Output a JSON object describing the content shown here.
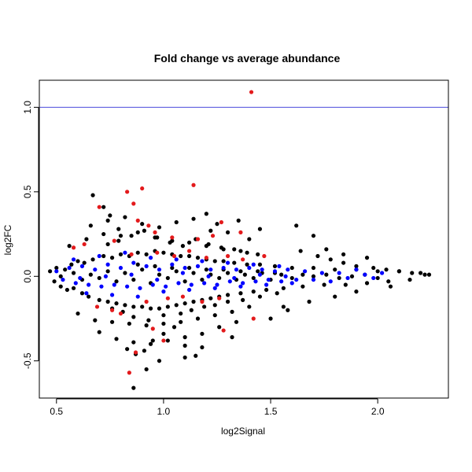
{
  "chart_data": {
    "type": "scatter",
    "title": "Fold change vs average abundance",
    "xlabel": "log2Signal",
    "ylabel": "log2FC",
    "xlim": [
      0.42,
      2.33
    ],
    "ylim": [
      -0.72,
      1.16
    ],
    "x_ticks": [
      {
        "value": 0.5,
        "label": "0.5"
      },
      {
        "value": 1.0,
        "label": "1.0"
      },
      {
        "value": 1.5,
        "label": "1.5"
      },
      {
        "value": 2.0,
        "label": "2.0"
      }
    ],
    "y_ticks": [
      {
        "value": -0.5,
        "label": "-0.5"
      },
      {
        "value": 0.0,
        "label": "0.0"
      },
      {
        "value": 0.5,
        "label": "0.5"
      },
      {
        "value": 1.0,
        "label": "1.0"
      }
    ],
    "reference_line": {
      "axis": "y",
      "value": 1.0,
      "color": "#4c4cdc"
    },
    "grid": false,
    "legend": "none",
    "colors": {
      "all": "#000000",
      "highlight": "#0000ff",
      "significant": "#e31a1c"
    },
    "series": [
      {
        "color": "#000000",
        "x": [
          0.47,
          0.49,
          0.5,
          0.52,
          0.54,
          0.55,
          0.57,
          0.58,
          0.6,
          0.62,
          0.63,
          0.65,
          0.67,
          0.7,
          0.72,
          0.74,
          0.76,
          0.78,
          0.8,
          0.82,
          0.84,
          0.86,
          0.88,
          0.9,
          0.92,
          0.94,
          0.96,
          0.98,
          1.0,
          1.02,
          1.04,
          1.06,
          1.08,
          1.1,
          1.12,
          1.14,
          1.16,
          1.18,
          1.2,
          1.22,
          1.24,
          1.26,
          1.28,
          1.3,
          1.33,
          1.36,
          1.39,
          1.42,
          1.45,
          1.48,
          1.52,
          1.56,
          1.6,
          1.65,
          1.7,
          1.75,
          1.8,
          1.85,
          1.9,
          1.95,
          2.0,
          2.05,
          2.1,
          2.15,
          2.2,
          2.24,
          0.52,
          0.58,
          0.62,
          0.66,
          0.7,
          0.74,
          0.78,
          0.82,
          0.86,
          0.9,
          0.94,
          0.98,
          1.02,
          1.06,
          1.1,
          1.14,
          1.18,
          1.22,
          1.26,
          1.3,
          1.34,
          1.38,
          1.42,
          1.46,
          1.5,
          1.55,
          1.6,
          1.65,
          1.7,
          1.76,
          1.82,
          1.88,
          1.94,
          2.0,
          0.56,
          0.64,
          0.72,
          0.8,
          0.88,
          0.96,
          1.04,
          1.12,
          1.2,
          1.28,
          1.36,
          1.44,
          0.6,
          0.68,
          0.76,
          0.84,
          0.92,
          1.0,
          1.08,
          1.16,
          1.24,
          1.32,
          1.4,
          0.66,
          0.74,
          0.82,
          0.9,
          0.98,
          1.06,
          1.14,
          1.22,
          0.7,
          0.78,
          0.86,
          0.94,
          1.02,
          1.1,
          1.18,
          1.26,
          1.34,
          0.88,
          0.96,
          1.04,
          1.12,
          1.2,
          1.28,
          1.36,
          1.44,
          1.52,
          0.67,
          0.72,
          0.75,
          0.79,
          0.83,
          0.87,
          0.91,
          0.95,
          1.0,
          1.05,
          1.1,
          1.15,
          1.2,
          1.25,
          1.3,
          1.35,
          1.4,
          1.45,
          1.5,
          1.58,
          1.64,
          1.72,
          1.78,
          1.84,
          1.9,
          1.98,
          2.04,
          2.1,
          2.16,
          2.22,
          1.62,
          1.7,
          1.76,
          1.84,
          1.95,
          1.56,
          1.68,
          1.8,
          1.9,
          2.06,
          0.74,
          0.79,
          0.85,
          0.91,
          0.97,
          1.03,
          1.09,
          1.15,
          1.21,
          1.27,
          1.33,
          1.39,
          0.76,
          0.81,
          0.86,
          0.93,
          1.0,
          1.08,
          1.13,
          1.19,
          1.24,
          1.3,
          1.37,
          1.45,
          1.53,
          0.86,
          0.92,
          0.98,
          1.1,
          1.18,
          1.32
        ],
        "y": [
          0.03,
          -0.03,
          0.05,
          -0.06,
          0.04,
          -0.08,
          0.07,
          -0.07,
          0.09,
          -0.1,
          0.08,
          -0.12,
          0.1,
          -0.14,
          0.12,
          -0.15,
          0.11,
          -0.16,
          0.13,
          -0.17,
          0.12,
          -0.18,
          0.14,
          -0.18,
          0.13,
          -0.19,
          0.15,
          -0.19,
          0.14,
          -0.18,
          0.13,
          -0.17,
          0.12,
          -0.16,
          0.12,
          -0.15,
          0.11,
          -0.14,
          0.1,
          -0.13,
          0.09,
          -0.12,
          0.09,
          -0.11,
          0.08,
          -0.1,
          0.07,
          -0.09,
          0.07,
          -0.08,
          0.06,
          -0.07,
          0.05,
          -0.06,
          0.05,
          -0.05,
          0.04,
          -0.05,
          0.04,
          -0.04,
          0.03,
          -0.03,
          0.03,
          -0.02,
          0.02,
          0.01,
          0.0,
          0.02,
          -0.02,
          0.01,
          -0.01,
          0.03,
          -0.03,
          0.02,
          -0.02,
          0.04,
          -0.04,
          0.01,
          -0.01,
          0.03,
          -0.03,
          0.02,
          -0.02,
          0.01,
          -0.01,
          0.02,
          -0.02,
          0.01,
          -0.01,
          0.02,
          -0.02,
          0.01,
          -0.01,
          0.01,
          0.0,
          0.01,
          -0.01,
          0.0,
          0.01,
          -0.01,
          0.18,
          0.22,
          0.25,
          0.24,
          0.26,
          0.23,
          0.21,
          0.2,
          0.18,
          0.16,
          0.15,
          0.13,
          -0.22,
          -0.26,
          -0.27,
          -0.28,
          -0.29,
          -0.28,
          -0.27,
          -0.25,
          -0.23,
          -0.21,
          -0.18,
          0.3,
          0.33,
          0.35,
          0.31,
          0.29,
          0.32,
          0.34,
          0.27,
          -0.33,
          -0.37,
          -0.39,
          -0.4,
          -0.38,
          -0.36,
          -0.34,
          -0.3,
          -0.27,
          0.07,
          0.06,
          0.05,
          0.05,
          0.04,
          0.04,
          0.03,
          0.03,
          0.02,
          0.48,
          0.41,
          0.36,
          0.28,
          -0.43,
          -0.46,
          -0.44,
          -0.38,
          -0.34,
          -0.3,
          -0.41,
          -0.47,
          0.37,
          0.31,
          0.26,
          0.33,
          0.22,
          0.28,
          -0.25,
          -0.2,
          0.15,
          0.12,
          0.1,
          0.08,
          0.06,
          0.05,
          0.04,
          0.03,
          0.02,
          0.01,
          0.3,
          0.24,
          0.16,
          0.13,
          0.11,
          -0.18,
          -0.15,
          -0.12,
          -0.09,
          -0.06,
          0.19,
          0.21,
          0.24,
          0.27,
          0.23,
          0.2,
          0.18,
          0.22,
          0.19,
          0.17,
          0.16,
          0.14,
          -0.19,
          -0.21,
          -0.24,
          -0.26,
          -0.23,
          -0.22,
          -0.2,
          -0.18,
          -0.17,
          -0.15,
          -0.14,
          -0.12,
          -0.1,
          -0.66,
          -0.55,
          -0.5,
          -0.48,
          -0.42,
          -0.36
        ]
      },
      {
        "color": "#0000ff",
        "x": [
          0.5,
          0.53,
          0.56,
          0.59,
          0.62,
          0.65,
          0.68,
          0.71,
          0.74,
          0.77,
          0.8,
          0.83,
          0.86,
          0.89,
          0.92,
          0.95,
          0.98,
          1.01,
          1.04,
          1.07,
          1.1,
          1.13,
          1.16,
          1.19,
          1.22,
          1.25,
          1.28,
          1.31,
          1.34,
          1.37,
          1.4,
          1.43,
          1.46,
          1.49,
          1.52,
          1.55,
          1.58,
          1.62,
          1.66,
          1.7,
          1.74,
          1.78,
          1.82,
          1.86,
          1.9,
          1.94,
          1.98,
          2.02,
          0.58,
          0.64,
          0.7,
          0.76,
          0.82,
          0.88,
          0.94,
          1.0,
          1.06,
          1.12,
          1.18,
          1.24,
          1.3,
          1.36,
          1.42,
          1.48,
          1.54,
          1.6,
          0.61,
          0.73,
          0.85,
          0.97,
          1.09,
          1.21,
          1.33,
          1.45,
          1.57
        ],
        "y": [
          0.03,
          -0.02,
          0.05,
          -0.04,
          0.06,
          -0.05,
          0.04,
          -0.06,
          0.07,
          -0.05,
          0.05,
          -0.06,
          0.08,
          -0.07,
          0.06,
          -0.05,
          0.04,
          -0.06,
          0.07,
          -0.04,
          0.05,
          -0.05,
          0.06,
          -0.04,
          0.04,
          -0.05,
          0.05,
          -0.03,
          0.04,
          -0.04,
          0.05,
          -0.03,
          0.04,
          -0.02,
          0.03,
          -0.03,
          0.04,
          -0.02,
          0.03,
          -0.02,
          0.02,
          -0.03,
          0.02,
          -0.01,
          0.04,
          0.01,
          -0.01,
          0.02,
          0.1,
          -0.1,
          0.12,
          -0.11,
          0.14,
          -0.12,
          0.11,
          -0.09,
          0.1,
          -0.08,
          0.09,
          -0.07,
          0.08,
          -0.06,
          0.07,
          -0.05,
          0.06,
          -0.04,
          -0.01,
          0.0,
          0.01,
          -0.02,
          0.02,
          0.0,
          -0.01,
          0.01,
          0.0
        ]
      },
      {
        "color": "#e31a1c",
        "x": [
          1.41,
          1.14,
          0.9,
          0.83,
          0.7,
          0.86,
          0.88,
          0.93,
          0.58,
          0.63,
          0.77,
          0.96,
          1.04,
          1.16,
          1.23,
          1.27,
          1.36,
          0.85,
          0.97,
          1.05,
          1.12,
          1.2,
          1.3,
          1.37,
          1.47,
          0.69,
          0.76,
          0.8,
          0.92,
          1.02,
          1.09,
          1.18,
          1.26,
          1.42,
          0.87,
          0.84,
          0.95,
          1.0,
          1.28
        ],
        "y": [
          1.09,
          0.54,
          0.52,
          0.5,
          0.41,
          0.43,
          0.33,
          0.3,
          0.17,
          0.19,
          0.21,
          0.26,
          0.23,
          0.22,
          0.24,
          0.32,
          0.26,
          0.13,
          0.14,
          0.12,
          0.15,
          0.11,
          0.12,
          0.1,
          0.12,
          -0.18,
          -0.2,
          -0.22,
          -0.15,
          -0.13,
          -0.12,
          -0.15,
          -0.13,
          -0.25,
          -0.45,
          -0.57,
          -0.31,
          -0.38,
          -0.32
        ]
      }
    ]
  }
}
